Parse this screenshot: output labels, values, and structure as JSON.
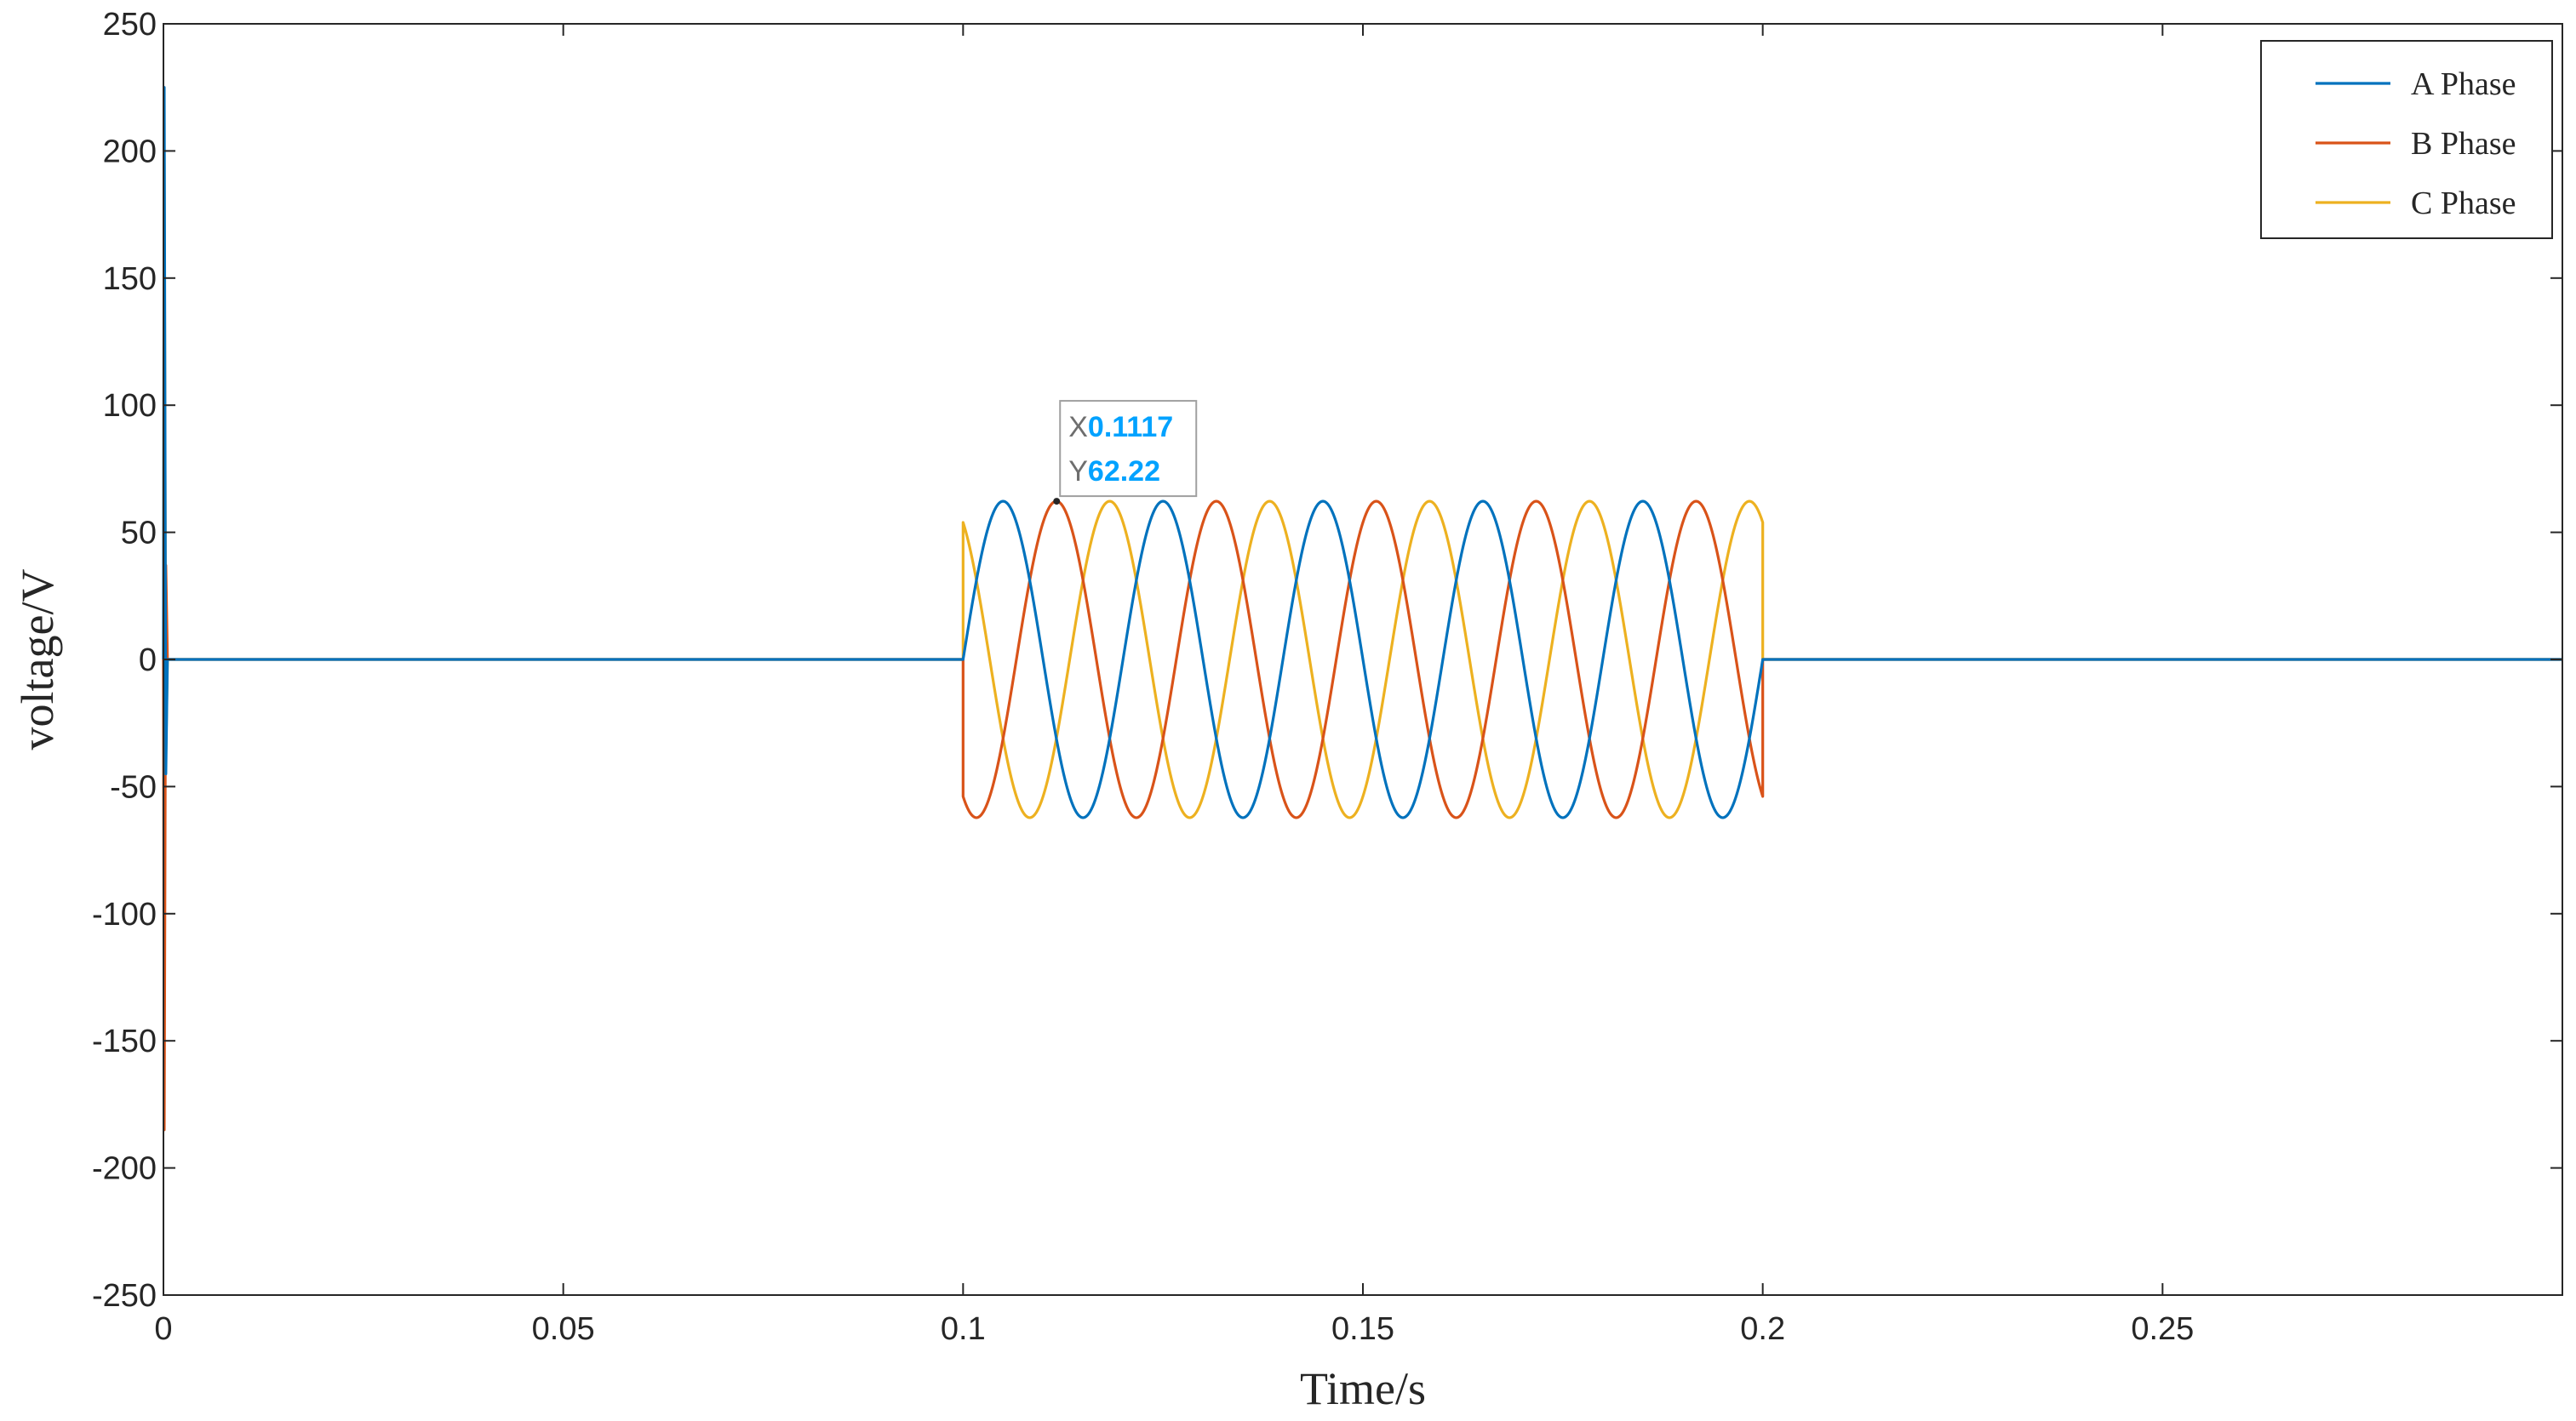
{
  "chart_data": {
    "type": "line",
    "xlabel": "Time/s",
    "ylabel": "voltage/V",
    "xlim": [
      0,
      0.3
    ],
    "ylim": [
      -250,
      250
    ],
    "xticks": [
      0,
      0.05,
      0.1,
      0.15,
      0.2,
      0.25
    ],
    "xtick_labels": [
      "0",
      "0.05",
      "0.1",
      "0.15",
      "0.2",
      "0.25"
    ],
    "yticks": [
      -250,
      -200,
      -150,
      -100,
      -50,
      0,
      50,
      100,
      150,
      200,
      250
    ],
    "ytick_labels": [
      "-250",
      "-200",
      "-150",
      "-100",
      "-50",
      "0",
      "50",
      "100",
      "150",
      "200",
      "250"
    ],
    "legend_position": "top-right",
    "grid": false,
    "series": [
      {
        "name": "A Phase",
        "color": "#0072BD",
        "amplitude": 62.22,
        "frequency_hz": 50,
        "phase_deg": 0,
        "active_interval": [
          0.1,
          0.2
        ],
        "startup_spike_peak": 225
      },
      {
        "name": "B Phase",
        "color": "#D95319",
        "amplitude": 62.22,
        "frequency_hz": 50,
        "phase_deg": -120,
        "active_interval": [
          0.1,
          0.2
        ],
        "startup_spike_peak": -185
      },
      {
        "name": "C Phase",
        "color": "#EDB120",
        "amplitude": 62.22,
        "frequency_hz": 50,
        "phase_deg": 120,
        "active_interval": [
          0.1,
          0.2
        ],
        "startup_spike_peak": 195
      }
    ],
    "datatip": {
      "x_prefix": "X",
      "x_value": "0.1117",
      "y_prefix": "Y",
      "y_value": "62.22",
      "x": 0.1117,
      "y": 62.22
    }
  }
}
